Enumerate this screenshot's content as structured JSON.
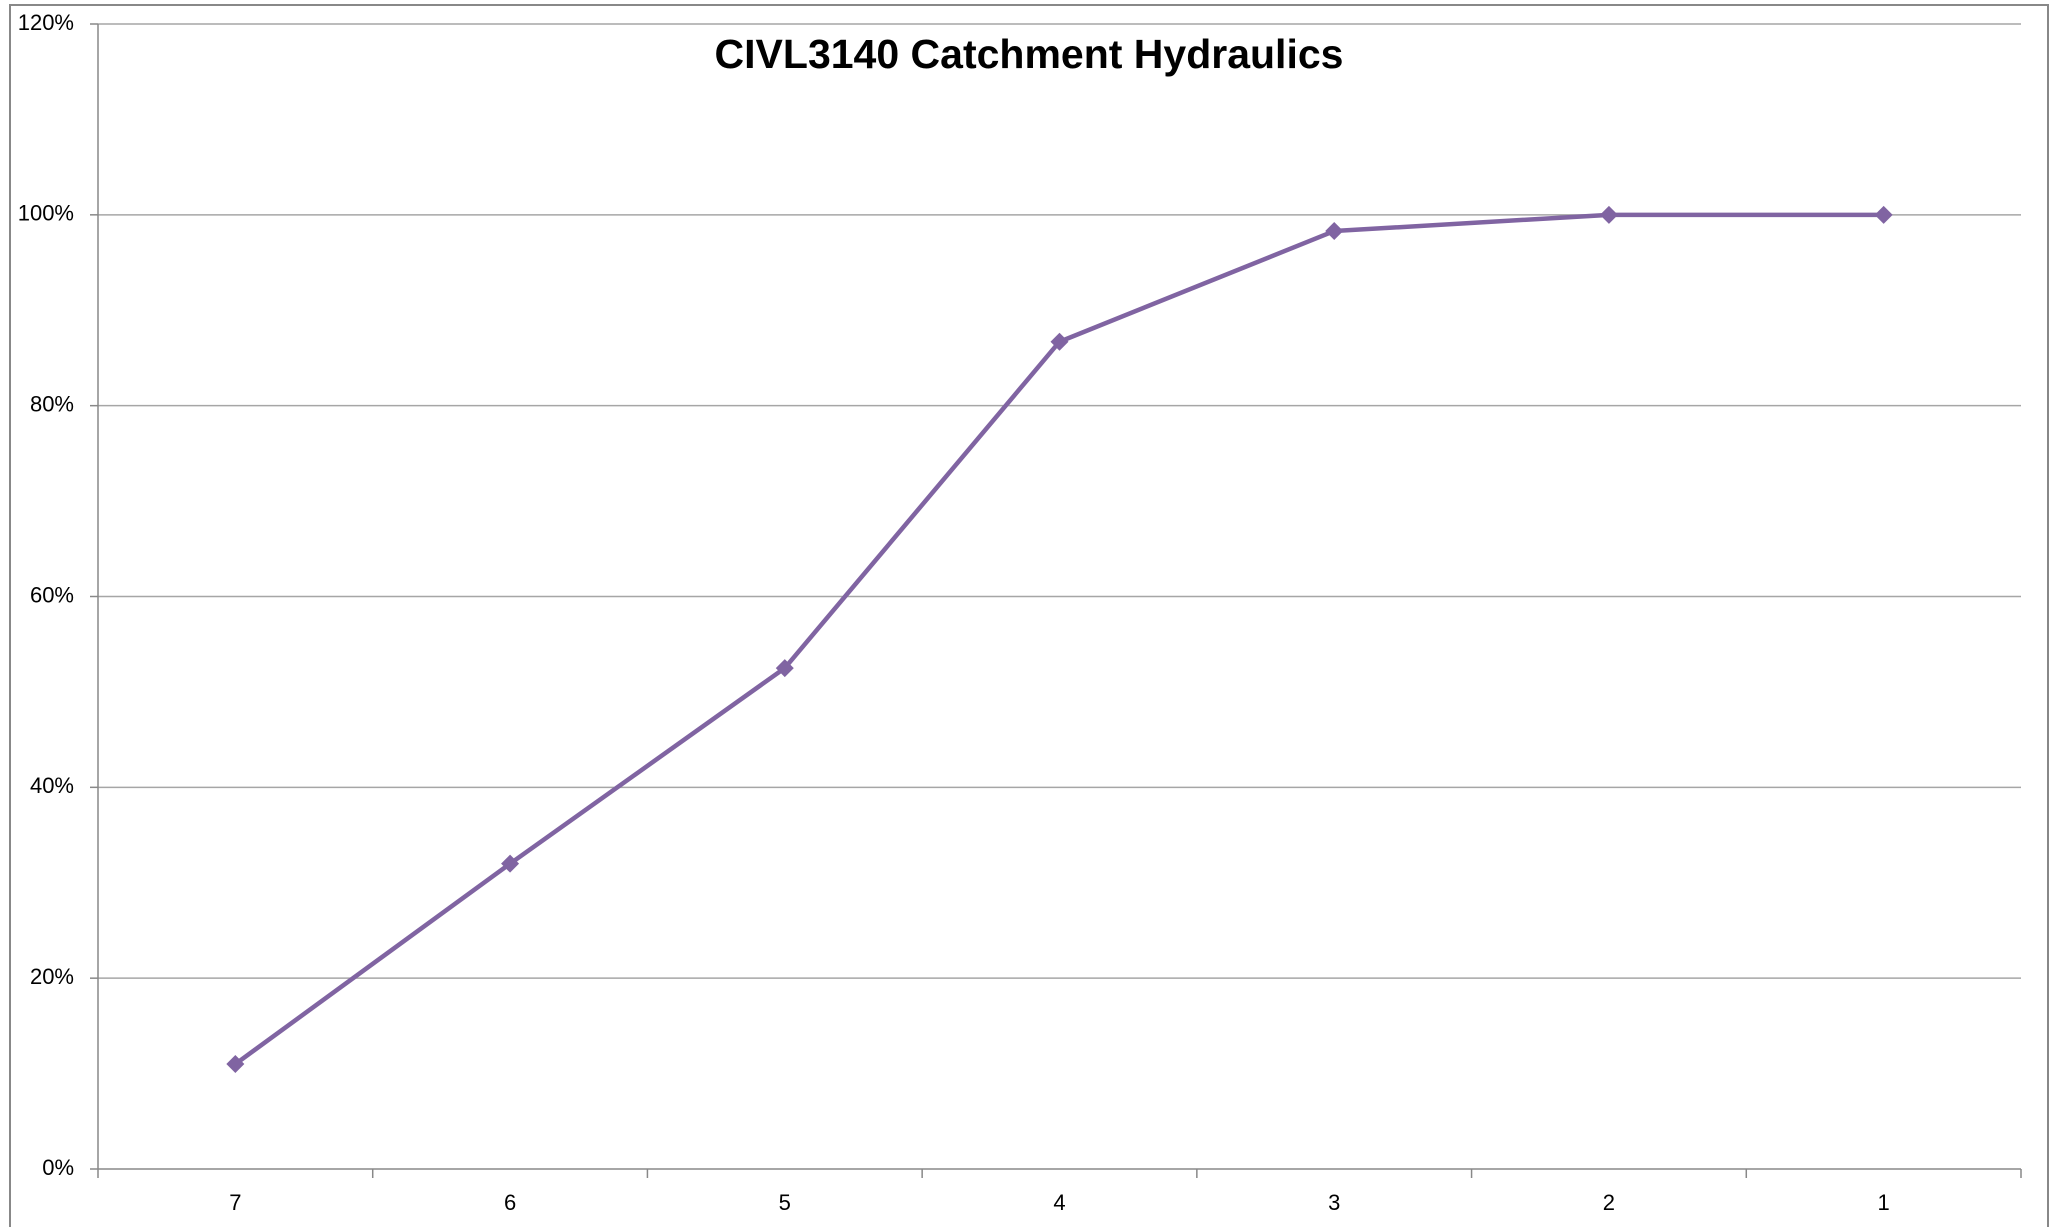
{
  "chart_data": {
    "type": "line",
    "title": "CIVL3140 Catchment Hydraulics",
    "categories": [
      "7",
      "6",
      "5",
      "4",
      "3",
      "2",
      "1"
    ],
    "series": [
      {
        "name": "Series1",
        "color": "#8064a2",
        "values": [
          11,
          32,
          52.5,
          86.7,
          98.3,
          100,
          100
        ]
      }
    ],
    "ylim": [
      0,
      120
    ],
    "yticks": [
      {
        "value": 0,
        "label": "0%"
      },
      {
        "value": 20,
        "label": "20%"
      },
      {
        "value": 40,
        "label": "40%"
      },
      {
        "value": 60,
        "label": "60%"
      },
      {
        "value": 80,
        "label": "80%"
      },
      {
        "value": 100,
        "label": "100%"
      },
      {
        "value": 120,
        "label": "120%"
      }
    ],
    "grid": true,
    "legend": "none"
  }
}
